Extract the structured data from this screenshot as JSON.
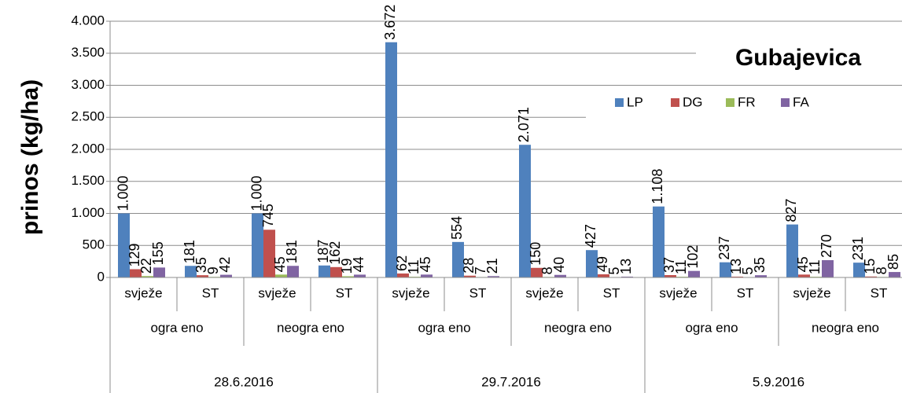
{
  "chart_data": {
    "type": "bar",
    "title": "Gubajevica",
    "y_axis_label": "prinos (kg/ha)",
    "categories": [
      "svježe",
      "ST",
      "svježe",
      "ST",
      "svježe",
      "ST",
      "svježe",
      "ST",
      "svježe",
      "ST",
      "svježe",
      "ST"
    ],
    "category_groups": [
      "ogra eno",
      "neogra eno",
      "ogra eno",
      "neogra eno",
      "ogra eno",
      "neogra eno"
    ],
    "category_top_groups": [
      "28.6.2016",
      "29.7.2016",
      "5.9.2016"
    ],
    "series": [
      {
        "name": "LP",
        "color": "#4f81bd",
        "values": [
          1000,
          181,
          1000,
          187,
          3672,
          554,
          2071,
          427,
          1108,
          237,
          827,
          231
        ],
        "value_labels": [
          "1.000",
          "181",
          "1.000",
          "187",
          "3.672",
          "554",
          "2.071",
          "427",
          "1.108",
          "237",
          "827",
          "231"
        ]
      },
      {
        "name": "DG",
        "color": "#c0504d",
        "values": [
          129,
          35,
          745,
          162,
          62,
          28,
          150,
          49,
          37,
          13,
          45,
          15
        ]
      },
      {
        "name": "FR",
        "color": "#9bbb59",
        "values": [
          22,
          9,
          45,
          19,
          11,
          7,
          8,
          5,
          11,
          5,
          11,
          8
        ]
      },
      {
        "name": "FA",
        "color": "#8064a2",
        "values": [
          155,
          42,
          181,
          44,
          45,
          21,
          40,
          13,
          102,
          35,
          270,
          85
        ]
      }
    ],
    "ylim": [
      0,
      4000
    ],
    "yticks": [
      0,
      500,
      {
        "value": 1000,
        "label": "1.000"
      },
      {
        "value": 1500,
        "label": "1.500"
      },
      {
        "value": 2000,
        "label": "2.000"
      },
      {
        "value": 2500,
        "label": "2.500"
      },
      {
        "value": 3000,
        "label": "3.000"
      },
      {
        "value": 3500,
        "label": "3.500"
      },
      {
        "value": 4000,
        "label": "4.000"
      }
    ],
    "grid": true,
    "legend": "top-right"
  }
}
